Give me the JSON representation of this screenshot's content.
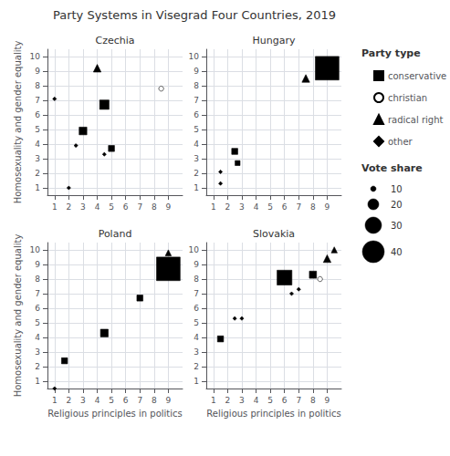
{
  "title": "Party Systems in Visegrad Four Countries, 2019",
  "legend": "right",
  "legend_title": "Party type",
  "size_legend": {
    "title": "Vote share",
    "values": [
      10,
      20,
      30,
      40
    ],
    "color": "black"
  },
  "chart_data": [
    {
      "type": "scatter",
      "title": "Czechia",
      "ylabel": "Homosexuality and gender equality",
      "xlim": [
        0.5,
        10.0
      ],
      "ylim": [
        0.5,
        10.5
      ],
      "xticks": [
        1,
        2,
        3,
        4,
        5,
        6,
        7,
        8,
        9
      ],
      "yticks": [
        1,
        2,
        3,
        4,
        5,
        6,
        7,
        8,
        9,
        10
      ],
      "grid": true,
      "series": [
        {
          "name": "conservative",
          "color": "black",
          "marker": "square",
          "x": [
            3.0,
            4.5,
            5.0
          ],
          "y": [
            4.9,
            6.7,
            3.7
          ],
          "size": [
            14,
            17,
            11
          ]
        },
        {
          "name": "christian",
          "color": "white",
          "marker": "circle",
          "x": [
            8.5
          ],
          "y": [
            7.8
          ],
          "size": [
            9
          ]
        },
        {
          "name": "radical right",
          "color": "black",
          "marker": "triangle",
          "x": [
            4.0
          ],
          "y": [
            9.2
          ],
          "size": [
            14
          ]
        },
        {
          "name": "other",
          "color": "black",
          "marker": "diamond",
          "x": [
            1.0,
            2.0,
            2.5,
            4.5
          ],
          "y": [
            7.1,
            1.0,
            3.9,
            3.3
          ],
          "size": [
            7,
            7,
            7,
            7
          ]
        }
      ]
    },
    {
      "type": "scatter",
      "title": "Hungary",
      "xlim": [
        0.5,
        10.0
      ],
      "ylim": [
        0.5,
        10.5
      ],
      "xticks": [
        1,
        2,
        3,
        4,
        5,
        6,
        7,
        8,
        9
      ],
      "yticks": [
        1,
        2,
        3,
        4,
        5,
        6,
        7,
        8,
        9,
        10
      ],
      "grid": true,
      "series": [
        {
          "name": "conservative",
          "color": "black",
          "marker": "square",
          "x": [
            2.5,
            2.7,
            9.0
          ],
          "y": [
            3.5,
            2.7,
            9.2
          ],
          "size": [
            11,
            9,
            43
          ]
        },
        {
          "name": "radical right",
          "color": "black",
          "marker": "triangle",
          "x": [
            7.5
          ],
          "y": [
            8.5
          ],
          "size": [
            14
          ]
        },
        {
          "name": "other",
          "color": "black",
          "marker": "diamond",
          "x": [
            1.5,
            1.5
          ],
          "y": [
            2.1,
            1.3
          ],
          "size": [
            7,
            7
          ]
        }
      ]
    },
    {
      "type": "scatter",
      "title": "Poland",
      "xlabel": "Religious principles in politics",
      "ylabel": "Homosexuality and gender equality",
      "xlim": [
        0.5,
        10.0
      ],
      "ylim": [
        0.5,
        10.5
      ],
      "xticks": [
        1,
        2,
        3,
        4,
        5,
        6,
        7,
        8,
        9
      ],
      "yticks": [
        1,
        2,
        3,
        4,
        5,
        6,
        7,
        8,
        9,
        10
      ],
      "grid": true,
      "series": [
        {
          "name": "conservative",
          "color": "black",
          "marker": "square",
          "x": [
            1.7,
            4.5,
            7.0,
            9.0
          ],
          "y": [
            2.4,
            4.3,
            6.7,
            8.7
          ],
          "size": [
            11,
            14,
            11,
            43
          ]
        },
        {
          "name": "radical right",
          "color": "black",
          "marker": "triangle",
          "x": [
            9.0
          ],
          "y": [
            9.8
          ],
          "size": [
            11
          ]
        },
        {
          "name": "other",
          "color": "black",
          "marker": "diamond",
          "x": [
            1.0
          ],
          "y": [
            0.5
          ],
          "size": [
            7
          ]
        }
      ]
    },
    {
      "type": "scatter",
      "title": "Slovakia",
      "xlabel": "Religious principles in politics",
      "xlim": [
        0.5,
        10.0
      ],
      "ylim": [
        0.5,
        10.5
      ],
      "xticks": [
        1,
        2,
        3,
        4,
        5,
        6,
        7,
        8,
        9
      ],
      "yticks": [
        1,
        2,
        3,
        4,
        5,
        6,
        7,
        8,
        9,
        10
      ],
      "grid": true,
      "series": [
        {
          "name": "conservative",
          "color": "black",
          "marker": "square",
          "x": [
            1.5,
            6.0,
            8.0
          ],
          "y": [
            3.9,
            8.1,
            8.3
          ],
          "size": [
            11,
            27,
            13
          ]
        },
        {
          "name": "christian",
          "color": "white",
          "marker": "circle",
          "x": [
            8.5
          ],
          "y": [
            8.0
          ],
          "size": [
            9
          ]
        },
        {
          "name": "radical right",
          "color": "black",
          "marker": "triangle",
          "x": [
            9.0,
            9.5
          ],
          "y": [
            9.4,
            10.0
          ],
          "size": [
            14,
            11
          ]
        },
        {
          "name": "other",
          "color": "black",
          "marker": "diamond",
          "x": [
            2.5,
            3.0,
            6.5,
            7.0
          ],
          "y": [
            5.3,
            5.3,
            7.0,
            7.3
          ],
          "size": [
            7,
            7,
            7,
            7
          ]
        }
      ]
    }
  ]
}
